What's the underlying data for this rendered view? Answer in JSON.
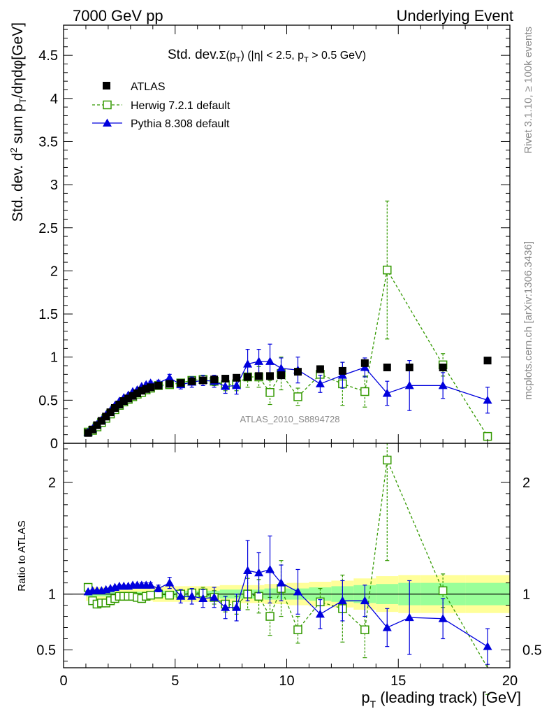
{
  "header": {
    "left": "7000 GeV pp",
    "right": "Underlying Event"
  },
  "side_text": {
    "top": "Rivet 3.1.10, ≥ 100k events",
    "bottom": "mcplots.cern.ch [arXiv:1306.3436]"
  },
  "chart_data": [
    {
      "type": "scatter",
      "panel": "main",
      "title": "Std. dev.Σ(pT) (|η| < 2.5, pT > 0.5 GeV)",
      "title_parts": {
        "a": "Std. dev.",
        "sigma": "Σ(p",
        "sub1": "T",
        "b": ") (|η| < 2.5, p",
        "sub2": "T",
        "c": " > 0.5 GeV)"
      },
      "ylabel": "Std. dev. d² sum pT/dηdφ[GeV]",
      "ylabel_parts": {
        "a": "Std. dev. d",
        "sup": "2",
        "b": " sum p",
        "sub": "T",
        "c": "/dηdφ[GeV]"
      },
      "watermark": "ATLAS_2010_S8894728",
      "xlim": [
        0,
        20
      ],
      "ylim": [
        0,
        4.85
      ],
      "yticks": [
        0,
        0.5,
        1,
        1.5,
        2,
        2.5,
        3,
        3.5,
        4,
        4.5
      ],
      "legend_position": "top-left",
      "series": [
        {
          "name": "ATLAS",
          "color": "#000000",
          "marker": "filled-square",
          "x": [
            1.1,
            1.3,
            1.5,
            1.7,
            1.9,
            2.1,
            2.3,
            2.5,
            2.7,
            2.9,
            3.1,
            3.3,
            3.5,
            3.7,
            3.9,
            4.25,
            4.75,
            5.25,
            5.75,
            6.25,
            6.75,
            7.25,
            7.75,
            8.25,
            8.75,
            9.25,
            9.75,
            10.5,
            11.5,
            12.5,
            13.5,
            14.5,
            15.5,
            17.0,
            19.0
          ],
          "y": [
            0.12,
            0.16,
            0.21,
            0.26,
            0.31,
            0.36,
            0.41,
            0.45,
            0.49,
            0.52,
            0.55,
            0.58,
            0.61,
            0.63,
            0.65,
            0.67,
            0.69,
            0.7,
            0.72,
            0.73,
            0.74,
            0.75,
            0.76,
            0.77,
            0.78,
            0.78,
            0.79,
            0.83,
            0.86,
            0.84,
            0.93,
            0.88,
            0.88,
            0.88,
            0.96
          ]
        },
        {
          "name": "Herwig 7.2.1 default",
          "color": "#339900",
          "marker": "open-square",
          "linestyle": "dashed",
          "x": [
            1.1,
            1.3,
            1.5,
            1.7,
            1.9,
            2.1,
            2.3,
            2.5,
            2.7,
            2.9,
            3.1,
            3.3,
            3.5,
            3.7,
            3.9,
            4.25,
            4.75,
            5.25,
            5.75,
            6.25,
            6.75,
            7.25,
            7.75,
            8.25,
            8.75,
            9.25,
            9.75,
            10.5,
            11.5,
            12.5,
            13.5,
            14.5,
            17.0,
            19.0
          ],
          "y": [
            0.13,
            0.15,
            0.19,
            0.24,
            0.29,
            0.34,
            0.39,
            0.44,
            0.48,
            0.51,
            0.54,
            0.57,
            0.59,
            0.62,
            0.64,
            0.67,
            0.68,
            0.7,
            0.73,
            0.74,
            0.72,
            0.68,
            0.69,
            0.77,
            0.77,
            0.59,
            0.81,
            0.54,
            0.8,
            0.69,
            0.6,
            2.01,
            0.91,
            0.08
          ],
          "yerr": [
            0,
            0,
            0,
            0,
            0,
            0,
            0,
            0,
            0,
            0,
            0.01,
            0.01,
            0.01,
            0.01,
            0.01,
            0.01,
            0.02,
            0.02,
            0.03,
            0.04,
            0.05,
            0.07,
            0.08,
            0.12,
            0.12,
            0.14,
            0.19,
            0.1,
            0.1,
            0.25,
            0.18,
            0.8,
            0.13,
            0.02
          ]
        },
        {
          "name": "Pythia 8.308 default",
          "color": "#0000dd",
          "marker": "filled-triangle",
          "linestyle": "solid",
          "x": [
            1.1,
            1.3,
            1.5,
            1.7,
            1.9,
            2.1,
            2.3,
            2.5,
            2.7,
            2.9,
            3.1,
            3.3,
            3.5,
            3.7,
            3.9,
            4.25,
            4.75,
            5.25,
            5.75,
            6.25,
            6.75,
            7.25,
            7.75,
            8.25,
            8.75,
            9.25,
            9.75,
            10.5,
            11.5,
            12.5,
            13.5,
            14.5,
            15.5,
            17.0,
            19.0
          ],
          "y": [
            0.13,
            0.17,
            0.22,
            0.27,
            0.33,
            0.38,
            0.44,
            0.49,
            0.53,
            0.56,
            0.6,
            0.62,
            0.66,
            0.68,
            0.7,
            0.7,
            0.76,
            0.68,
            0.71,
            0.73,
            0.72,
            0.66,
            0.67,
            0.92,
            0.95,
            0.95,
            0.87,
            0.85,
            0.69,
            0.79,
            0.88,
            0.58,
            0.67,
            0.67,
            0.5
          ],
          "yerr": [
            0,
            0,
            0,
            0,
            0,
            0,
            0,
            0,
            0,
            0,
            0.01,
            0.01,
            0.01,
            0.02,
            0.02,
            0.03,
            0.04,
            0.05,
            0.06,
            0.06,
            0.07,
            0.08,
            0.1,
            0.17,
            0.14,
            0.2,
            0.12,
            0.15,
            0.1,
            0.15,
            0.11,
            0.14,
            0.29,
            0.15,
            0.15
          ]
        }
      ]
    },
    {
      "type": "scatter",
      "panel": "ratio",
      "ylabel": "Ratio to ATLAS",
      "xlabel": "pT (leading track) [GeV]",
      "xlabel_parts": {
        "a": "p",
        "sub": "T",
        "b": " (leading track) [GeV]"
      },
      "xlim": [
        0,
        20
      ],
      "ylim": [
        0.34,
        2.35
      ],
      "xticks": [
        0,
        5,
        10,
        15,
        20
      ],
      "yticks_left": [
        0.5,
        1,
        2
      ],
      "yticks_right": [
        0.5,
        1,
        2
      ],
      "reference_line": 1,
      "bands": {
        "yellow_color": "#ffff99",
        "green_color": "#99ff99",
        "x_edges": [
          1.0,
          2.0,
          3.0,
          4.0,
          5.0,
          6.0,
          7.0,
          8.0,
          9.0,
          10.0,
          11.0,
          12.0,
          13.0,
          14.0,
          15.0,
          16.0,
          18.0,
          20.0
        ],
        "yellow_halfwidth": [
          0.06,
          0.06,
          0.06,
          0.07,
          0.07,
          0.07,
          0.08,
          0.08,
          0.09,
          0.1,
          0.11,
          0.12,
          0.14,
          0.16,
          0.17,
          0.17,
          0.17
        ],
        "green_halfwidth": [
          0.02,
          0.02,
          0.02,
          0.03,
          0.03,
          0.03,
          0.04,
          0.04,
          0.05,
          0.05,
          0.06,
          0.07,
          0.08,
          0.09,
          0.1,
          0.1,
          0.1
        ]
      },
      "series": [
        {
          "name": "Herwig 7.2.1 default",
          "color": "#339900",
          "marker": "open-square",
          "linestyle": "dashed",
          "x": [
            1.1,
            1.3,
            1.5,
            1.7,
            1.9,
            2.1,
            2.3,
            2.5,
            2.7,
            2.9,
            3.1,
            3.3,
            3.5,
            3.7,
            3.9,
            4.25,
            4.75,
            5.25,
            5.75,
            6.25,
            6.75,
            7.25,
            7.75,
            8.25,
            8.75,
            9.25,
            9.75,
            10.5,
            11.5,
            12.5,
            13.5,
            14.5,
            17.0,
            19.0
          ],
          "y": [
            1.06,
            0.94,
            0.91,
            0.92,
            0.92,
            0.94,
            0.96,
            0.98,
            0.98,
            0.98,
            0.98,
            0.97,
            0.96,
            0.98,
            0.99,
            1.0,
            0.99,
            1.0,
            1.01,
            1.01,
            0.97,
            0.91,
            0.9,
            1.0,
            0.98,
            0.8,
            1.05,
            0.68,
            0.93,
            0.87,
            0.68,
            2.2,
            1.03,
            0.08
          ],
          "yerr": [
            0,
            0,
            0,
            0.01,
            0.01,
            0.01,
            0.01,
            0.01,
            0.01,
            0.02,
            0.02,
            0.02,
            0.02,
            0.02,
            0.02,
            0.03,
            0.03,
            0.03,
            0.04,
            0.05,
            0.06,
            0.07,
            0.08,
            0.14,
            0.15,
            0.17,
            0.25,
            0.12,
            0.12,
            0.3,
            0.25,
            0.9,
            0.15,
            0.02
          ]
        },
        {
          "name": "Pythia 8.308 default",
          "color": "#0000dd",
          "marker": "filled-triangle",
          "linestyle": "solid",
          "x": [
            1.1,
            1.3,
            1.5,
            1.7,
            1.9,
            2.1,
            2.3,
            2.5,
            2.7,
            2.9,
            3.1,
            3.3,
            3.5,
            3.7,
            3.9,
            4.25,
            4.75,
            5.25,
            5.75,
            6.25,
            6.75,
            7.25,
            7.75,
            8.25,
            8.75,
            9.25,
            9.75,
            10.5,
            11.5,
            12.5,
            13.5,
            14.5,
            15.5,
            17.0,
            19.0
          ],
          "y": [
            1.02,
            1.03,
            1.03,
            1.03,
            1.04,
            1.05,
            1.06,
            1.07,
            1.07,
            1.07,
            1.08,
            1.08,
            1.08,
            1.08,
            1.08,
            1.05,
            1.1,
            0.98,
            0.98,
            0.96,
            0.97,
            0.88,
            0.88,
            1.21,
            1.19,
            1.22,
            1.1,
            1.02,
            0.82,
            0.94,
            0.94,
            0.7,
            0.79,
            0.78,
            0.53
          ],
          "yerr": [
            0.01,
            0.01,
            0.01,
            0.01,
            0.01,
            0.01,
            0.01,
            0.01,
            0.01,
            0.01,
            0.01,
            0.01,
            0.02,
            0.02,
            0.02,
            0.03,
            0.05,
            0.06,
            0.07,
            0.08,
            0.09,
            0.1,
            0.12,
            0.27,
            0.18,
            0.3,
            0.16,
            0.2,
            0.13,
            0.18,
            0.14,
            0.17,
            0.33,
            0.18,
            0.16
          ]
        }
      ]
    }
  ]
}
